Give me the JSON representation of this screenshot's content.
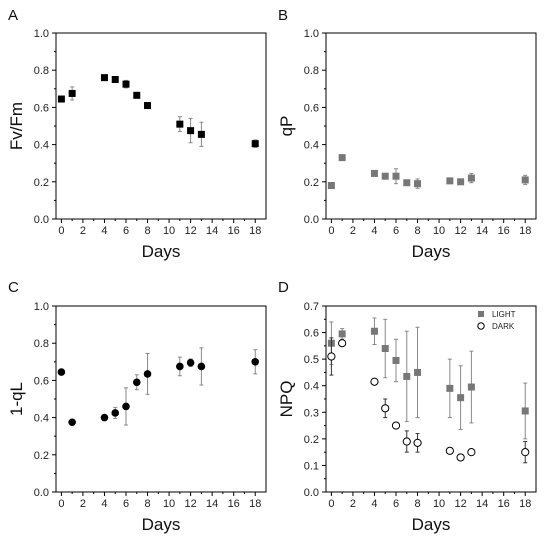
{
  "chart_data": [
    {
      "panel": "A",
      "type": "scatter",
      "xlabel": "Days",
      "ylabel": "Fv/Fm",
      "xlim": [
        -0.5,
        19
      ],
      "ylim": [
        0,
        1.0
      ],
      "xticks": [
        0,
        2,
        4,
        6,
        8,
        10,
        12,
        14,
        16,
        18
      ],
      "yticks": [
        0.0,
        0.2,
        0.4,
        0.6,
        0.8,
        1.0
      ],
      "series": [
        {
          "marker": "filled-square",
          "color": "#000000",
          "x": [
            0,
            1,
            4,
            5,
            6,
            7,
            8,
            11,
            12,
            13,
            18
          ],
          "y": [
            0.645,
            0.675,
            0.76,
            0.75,
            0.725,
            0.665,
            0.61,
            0.51,
            0.475,
            0.455,
            0.405
          ],
          "err": [
            0.01,
            0.035,
            0.01,
            0.012,
            0.02,
            0.01,
            0.01,
            0.04,
            0.065,
            0.065,
            0.02
          ]
        }
      ]
    },
    {
      "panel": "B",
      "type": "scatter",
      "xlabel": "Days",
      "ylabel": "qP",
      "xlim": [
        -0.5,
        19
      ],
      "ylim": [
        0,
        1.0
      ],
      "xticks": [
        0,
        2,
        4,
        6,
        8,
        10,
        12,
        14,
        16,
        18
      ],
      "yticks": [
        0.0,
        0.2,
        0.4,
        0.6,
        0.8,
        1.0
      ],
      "series": [
        {
          "marker": "filled-square",
          "color": "#777777",
          "x": [
            0,
            1,
            4,
            5,
            6,
            7,
            8,
            11,
            12,
            13,
            18
          ],
          "y": [
            0.18,
            0.33,
            0.245,
            0.23,
            0.23,
            0.195,
            0.19,
            0.205,
            0.2,
            0.22,
            0.21
          ],
          "err": [
            0.008,
            0.008,
            0.008,
            0.008,
            0.04,
            0.01,
            0.025,
            0.015,
            0.01,
            0.025,
            0.025
          ]
        }
      ]
    },
    {
      "panel": "C",
      "type": "scatter",
      "xlabel": "Days",
      "ylabel": "1-qL",
      "xlim": [
        -0.5,
        19
      ],
      "ylim": [
        0,
        1.0
      ],
      "xticks": [
        0,
        2,
        4,
        6,
        8,
        10,
        12,
        14,
        16,
        18
      ],
      "yticks": [
        0.0,
        0.2,
        0.4,
        0.6,
        0.8,
        1.0
      ],
      "series": [
        {
          "marker": "filled-circle",
          "color": "#000000",
          "x": [
            0,
            1,
            4,
            5,
            6,
            7,
            8,
            11,
            12,
            13,
            18
          ],
          "y": [
            0.645,
            0.375,
            0.4,
            0.425,
            0.46,
            0.59,
            0.635,
            0.675,
            0.695,
            0.675,
            0.7
          ],
          "err": [
            0.008,
            0.015,
            0.01,
            0.03,
            0.1,
            0.04,
            0.11,
            0.05,
            0.02,
            0.1,
            0.065
          ]
        }
      ]
    },
    {
      "panel": "D",
      "type": "scatter",
      "xlabel": "Days",
      "ylabel": "NPQ",
      "xlim": [
        -0.5,
        19
      ],
      "ylim": [
        0,
        0.7
      ],
      "xticks": [
        0,
        2,
        4,
        6,
        8,
        10,
        12,
        14,
        16,
        18
      ],
      "yticks": [
        0.0,
        0.1,
        0.2,
        0.3,
        0.4,
        0.5,
        0.6,
        0.7
      ],
      "legend": "top-right",
      "series": [
        {
          "name": "LIGHT",
          "marker": "filled-square",
          "color": "#777777",
          "x": [
            0,
            1,
            4,
            5,
            6,
            7,
            8,
            11,
            12,
            13,
            18
          ],
          "y": [
            0.56,
            0.595,
            0.605,
            0.54,
            0.495,
            0.435,
            0.45,
            0.39,
            0.355,
            0.395,
            0.305
          ],
          "err": [
            0.08,
            0.02,
            0.05,
            0.11,
            0.08,
            0.17,
            0.17,
            0.11,
            0.12,
            0.135,
            0.105
          ]
        },
        {
          "name": "DARK",
          "marker": "open-circle",
          "color": "#000000",
          "x": [
            0,
            1,
            4,
            5,
            6,
            7,
            8,
            11,
            12,
            13,
            18
          ],
          "y": [
            0.51,
            0.56,
            0.415,
            0.315,
            0.25,
            0.19,
            0.185,
            0.155,
            0.13,
            0.15,
            0.15
          ],
          "err": [
            0.07,
            0.01,
            0.008,
            0.035,
            0.008,
            0.04,
            0.035,
            0.008,
            0.008,
            0.008,
            0.04
          ]
        }
      ]
    }
  ]
}
